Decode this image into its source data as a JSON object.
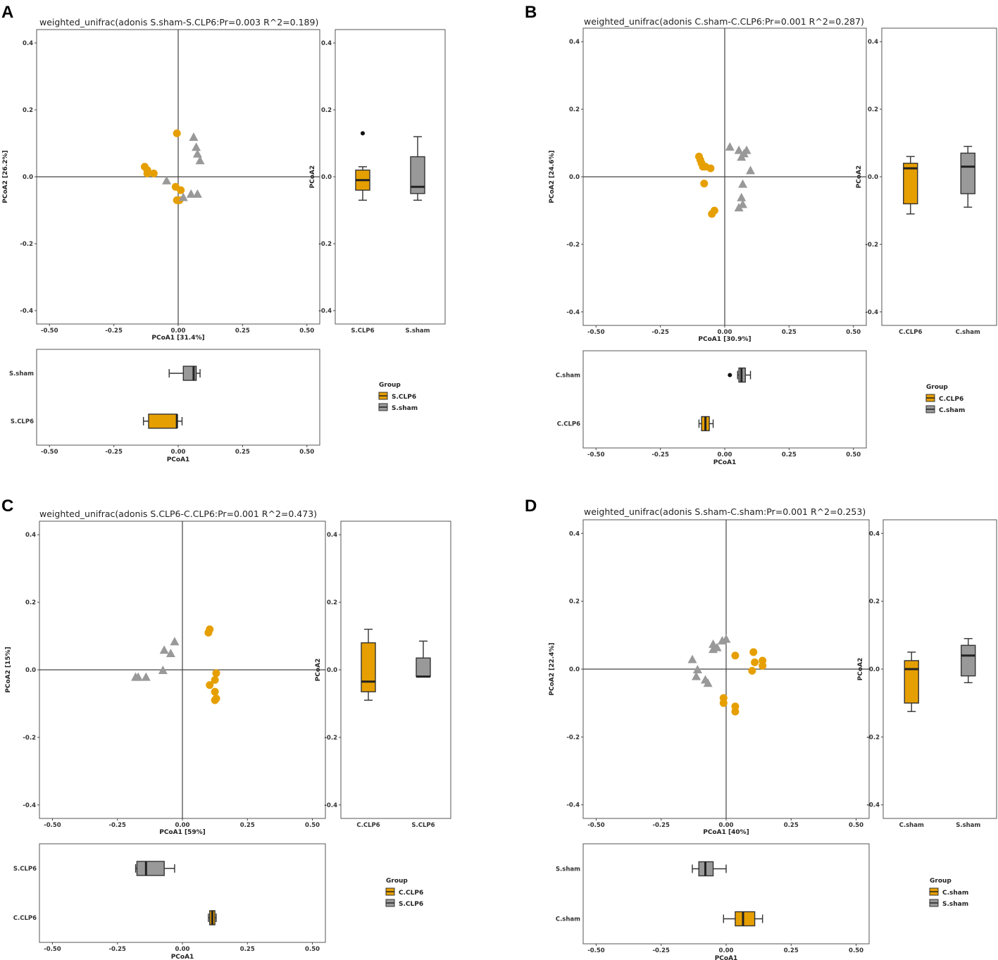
{
  "figure": {
    "colors": {
      "CLP6": "#E69F00",
      "sham": "#999999",
      "frame": "#555555",
      "outlier": "#111111"
    }
  },
  "chart_data": [
    {
      "type": "scatter",
      "panel_letter": "A",
      "title": "weighted_unifrac(adonis S.sham-S.CLP6:Pr=0.003 R^2=0.189)",
      "xlabel": "PCoA1 [31.4%]",
      "ylabel": "PCoA2 [26.2%]",
      "xlim": [
        -0.55,
        0.55
      ],
      "ylim": [
        -0.44,
        0.44
      ],
      "xticks": [
        "-0.50",
        "-0.25",
        "0.00",
        "0.25",
        "0.50"
      ],
      "yticks": [
        "0.4",
        "0.2",
        "0.0",
        "-0.2",
        "-0.4"
      ],
      "series": [
        {
          "name": "S.CLP6",
          "color": "#E69F00",
          "shape": "circle",
          "points": [
            [
              -0.005,
              0.13
            ],
            [
              -0.13,
              0.03
            ],
            [
              -0.12,
              0.02
            ],
            [
              -0.12,
              0.01
            ],
            [
              -0.095,
              0.01
            ],
            [
              -0.01,
              -0.03
            ],
            [
              0.01,
              -0.04
            ],
            [
              -0.005,
              -0.07
            ],
            [
              0.005,
              -0.07
            ]
          ]
        },
        {
          "name": "S.sham",
          "color": "#999999",
          "shape": "triangle",
          "points": [
            [
              0.06,
              0.12
            ],
            [
              0.07,
              0.09
            ],
            [
              0.075,
              0.07
            ],
            [
              0.085,
              0.05
            ],
            [
              -0.045,
              -0.01
            ],
            [
              0.05,
              -0.05
            ],
            [
              0.075,
              -0.05
            ],
            [
              0.02,
              -0.06
            ]
          ]
        }
      ],
      "boxplot_y": {
        "ylabel": "PCoA2",
        "groups": [
          {
            "name": "S.CLP6",
            "color": "#E69F00",
            "min": -0.07,
            "q1": -0.04,
            "median": -0.01,
            "q3": 0.02,
            "max": 0.03,
            "outliers": [
              0.13
            ]
          },
          {
            "name": "S.sham",
            "color": "#999999",
            "min": -0.07,
            "q1": -0.05,
            "median": -0.03,
            "q3": 0.06,
            "max": 0.12,
            "outliers": []
          }
        ]
      },
      "boxplot_x": {
        "xlabel": "PCoA1",
        "groups": [
          {
            "name": "S.sham",
            "color": "#999999",
            "min": -0.035,
            "q1": 0.02,
            "median": 0.06,
            "q3": 0.07,
            "max": 0.085,
            "outliers": []
          },
          {
            "name": "S.CLP6",
            "color": "#E69F00",
            "min": -0.135,
            "q1": -0.115,
            "median": -0.005,
            "q3": -0.005,
            "max": 0.015,
            "outliers": []
          }
        ]
      },
      "legend": {
        "title": "Group",
        "entries": [
          {
            "name": "S.CLP6",
            "color": "#E69F00"
          },
          {
            "name": "S.sham",
            "color": "#999999"
          }
        ]
      }
    },
    {
      "type": "scatter",
      "panel_letter": "B",
      "title": "weighted_unifrac(adonis C.sham-C.CLP6:Pr=0.001 R^2=0.287)",
      "xlabel": "PCoA1 [30.9%]",
      "ylabel": "PCoA2 [24.6%]",
      "xlim": [
        -0.55,
        0.55
      ],
      "ylim": [
        -0.44,
        0.44
      ],
      "xticks": [
        "-0.50",
        "-0.25",
        "0.00",
        "0.25",
        "0.50"
      ],
      "yticks": [
        "0.4",
        "0.2",
        "0.0",
        "-0.2",
        "-0.4"
      ],
      "series": [
        {
          "name": "C.CLP6",
          "color": "#E69F00",
          "shape": "circle",
          "points": [
            [
              -0.1,
              0.06
            ],
            [
              -0.095,
              0.05
            ],
            [
              -0.09,
              0.04
            ],
            [
              -0.085,
              0.03
            ],
            [
              -0.075,
              0.03
            ],
            [
              -0.055,
              0.025
            ],
            [
              -0.08,
              -0.02
            ],
            [
              -0.04,
              -0.1
            ],
            [
              -0.05,
              -0.11
            ]
          ]
        },
        {
          "name": "C.sham",
          "color": "#999999",
          "shape": "triangle",
          "points": [
            [
              0.02,
              0.09
            ],
            [
              0.055,
              0.08
            ],
            [
              0.065,
              0.06
            ],
            [
              0.085,
              0.08
            ],
            [
              0.075,
              0.07
            ],
            [
              0.1,
              0.02
            ],
            [
              0.07,
              -0.02
            ],
            [
              0.065,
              -0.06
            ],
            [
              0.055,
              -0.09
            ],
            [
              0.07,
              -0.08
            ]
          ]
        }
      ],
      "boxplot_y": {
        "ylabel": "PCoA2",
        "groups": [
          {
            "name": "C.CLP6",
            "color": "#E69F00",
            "min": -0.11,
            "q1": -0.08,
            "median": 0.025,
            "q3": 0.04,
            "max": 0.06,
            "outliers": []
          },
          {
            "name": "C.sham",
            "color": "#999999",
            "min": -0.09,
            "q1": -0.05,
            "median": 0.03,
            "q3": 0.07,
            "max": 0.09,
            "outliers": []
          }
        ]
      },
      "boxplot_x": {
        "xlabel": "PCoA1",
        "groups": [
          {
            "name": "C.sham",
            "color": "#999999",
            "min": 0.05,
            "q1": 0.055,
            "median": 0.065,
            "q3": 0.08,
            "max": 0.1,
            "outliers": [
              0.02
            ]
          },
          {
            "name": "C.CLP6",
            "color": "#E69F00",
            "min": -0.1,
            "q1": -0.09,
            "median": -0.075,
            "q3": -0.06,
            "max": -0.045,
            "outliers": []
          }
        ]
      },
      "legend": {
        "title": "Group",
        "entries": [
          {
            "name": "C.CLP6",
            "color": "#E69F00"
          },
          {
            "name": "C.sham",
            "color": "#999999"
          }
        ]
      }
    },
    {
      "type": "scatter",
      "panel_letter": "C",
      "title": "weighted_unifrac(adonis S.CLP6-C.CLP6:Pr=0.001 R^2=0.473)",
      "xlabel": "PCoA1 [59%]",
      "ylabel": "PCoA2 [15%]",
      "xlim": [
        -0.55,
        0.55
      ],
      "ylim": [
        -0.44,
        0.44
      ],
      "xticks": [
        "-0.50",
        "-0.25",
        "0.00",
        "0.25",
        "0.50"
      ],
      "yticks": [
        "0.4",
        "0.2",
        "0.0",
        "-0.2",
        "-0.4"
      ],
      "series": [
        {
          "name": "C.CLP6",
          "color": "#E69F00",
          "shape": "circle",
          "points": [
            [
              0.105,
              0.12
            ],
            [
              0.1,
              0.11
            ],
            [
              0.13,
              -0.01
            ],
            [
              0.125,
              -0.03
            ],
            [
              0.105,
              -0.045
            ],
            [
              0.125,
              -0.065
            ],
            [
              0.13,
              -0.085
            ],
            [
              0.125,
              -0.09
            ]
          ]
        },
        {
          "name": "S.CLP6",
          "color": "#999999",
          "shape": "triangle",
          "points": [
            [
              -0.03,
              0.085
            ],
            [
              -0.07,
              0.06
            ],
            [
              -0.045,
              0.05
            ],
            [
              -0.075,
              0.0
            ],
            [
              -0.18,
              -0.02
            ],
            [
              -0.17,
              -0.02
            ],
            [
              -0.14,
              -0.02
            ]
          ]
        }
      ],
      "boxplot_y": {
        "ylabel": "PCoA2",
        "groups": [
          {
            "name": "C.CLP6",
            "color": "#E69F00",
            "min": -0.09,
            "q1": -0.065,
            "median": -0.035,
            "q3": 0.08,
            "max": 0.12,
            "outliers": []
          },
          {
            "name": "S.CLP6",
            "color": "#999999",
            "min": -0.02,
            "q1": -0.02,
            "median": -0.02,
            "q3": 0.035,
            "max": 0.085,
            "outliers": []
          }
        ]
      },
      "boxplot_x": {
        "xlabel": "PCoA1",
        "groups": [
          {
            "name": "S.CLP6",
            "color": "#999999",
            "min": -0.18,
            "q1": -0.175,
            "median": -0.14,
            "q3": -0.07,
            "max": -0.03,
            "outliers": []
          },
          {
            "name": "C.CLP6",
            "color": "#E69F00",
            "min": 0.1,
            "q1": 0.105,
            "median": 0.115,
            "q3": 0.125,
            "max": 0.13,
            "outliers": []
          }
        ]
      },
      "legend": {
        "title": "Group",
        "entries": [
          {
            "name": "C.CLP6",
            "color": "#E69F00"
          },
          {
            "name": "S.CLP6",
            "color": "#999999"
          }
        ]
      }
    },
    {
      "type": "scatter",
      "panel_letter": "D",
      "title": "weighted_unifrac(adonis S.sham-C.sham:Pr=0.001 R^2=0.253)",
      "xlabel": "PCoA1 [40%]",
      "ylabel": "PCoA2 [22.4%]",
      "xlim": [
        -0.55,
        0.55
      ],
      "ylim": [
        -0.44,
        0.44
      ],
      "xticks": [
        "-0.50",
        "-0.25",
        "0.00",
        "0.25",
        "0.50"
      ],
      "yticks": [
        "0.4",
        "0.2",
        "0.0",
        "-0.2",
        "-0.4"
      ],
      "series": [
        {
          "name": "C.sham",
          "color": "#E69F00",
          "shape": "circle",
          "points": [
            [
              0.035,
              0.04
            ],
            [
              0.105,
              0.05
            ],
            [
              0.11,
              0.02
            ],
            [
              0.14,
              0.025
            ],
            [
              0.14,
              0.01
            ],
            [
              0.1,
              -0.005
            ],
            [
              -0.01,
              -0.085
            ],
            [
              -0.01,
              -0.1
            ],
            [
              0.035,
              -0.11
            ],
            [
              0.035,
              -0.125
            ]
          ]
        },
        {
          "name": "S.sham",
          "color": "#999999",
          "shape": "triangle",
          "points": [
            [
              0.0,
              0.09
            ],
            [
              -0.015,
              0.085
            ],
            [
              -0.05,
              0.075
            ],
            [
              -0.05,
              0.06
            ],
            [
              -0.035,
              0.065
            ],
            [
              -0.13,
              0.03
            ],
            [
              -0.11,
              0.0
            ],
            [
              -0.115,
              -0.02
            ],
            [
              -0.08,
              -0.03
            ],
            [
              -0.07,
              -0.04
            ]
          ]
        }
      ],
      "boxplot_y": {
        "ylabel": "PCoA2",
        "groups": [
          {
            "name": "C.sham",
            "color": "#E69F00",
            "min": -0.125,
            "q1": -0.1,
            "median": 0.0,
            "q3": 0.025,
            "max": 0.05,
            "outliers": []
          },
          {
            "name": "S.sham",
            "color": "#999999",
            "min": -0.04,
            "q1": -0.02,
            "median": 0.04,
            "q3": 0.07,
            "max": 0.09,
            "outliers": []
          }
        ]
      },
      "boxplot_x": {
        "xlabel": "PCoA1",
        "groups": [
          {
            "name": "S.sham",
            "color": "#999999",
            "min": -0.13,
            "q1": -0.105,
            "median": -0.08,
            "q3": -0.05,
            "max": 0.0,
            "outliers": []
          },
          {
            "name": "C.sham",
            "color": "#E69F00",
            "min": -0.01,
            "q1": 0.035,
            "median": 0.065,
            "q3": 0.11,
            "max": 0.14,
            "outliers": []
          }
        ]
      },
      "legend": {
        "title": "Group",
        "entries": [
          {
            "name": "C.sham",
            "color": "#E69F00"
          },
          {
            "name": "S.sham",
            "color": "#999999"
          }
        ]
      }
    }
  ]
}
